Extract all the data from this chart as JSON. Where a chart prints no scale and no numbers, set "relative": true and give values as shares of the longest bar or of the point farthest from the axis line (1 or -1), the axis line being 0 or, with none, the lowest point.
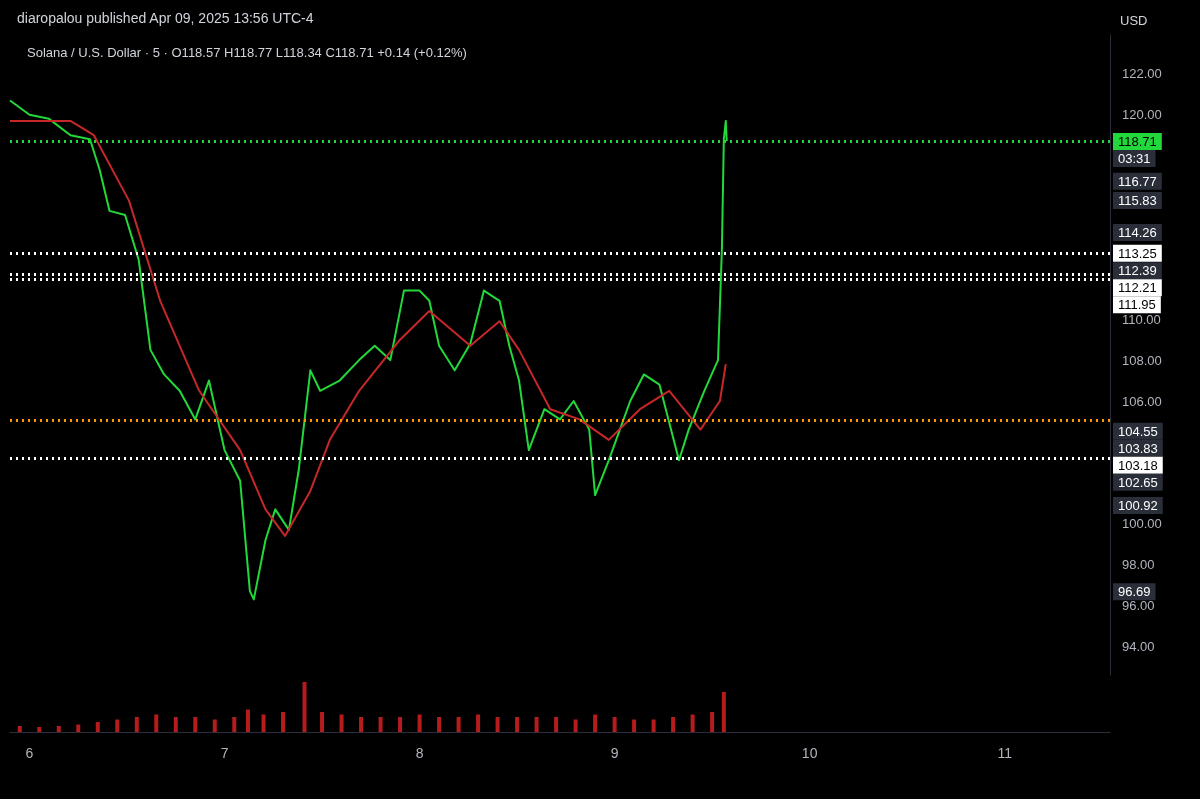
{
  "chart_data": [
    {
      "type": "line",
      "title": "Solana / U.S. Dollar · 5 · O118.57 H118.77 L118.34 C118.71 +0.14 (+0.12%)",
      "subtitle": "diaropalou published Apr 09, 2025 13:56 UTC-4",
      "ylabel": "USD",
      "xlim": [
        5.9,
        11.54
      ],
      "ylim": [
        92.6,
        123.9
      ],
      "yticks": [
        {
          "value": 94,
          "label": "94.00"
        },
        {
          "value": 96,
          "label": "96.00"
        },
        {
          "value": 98,
          "label": "98.00"
        },
        {
          "value": 100,
          "label": "100.00"
        },
        {
          "value": 106,
          "label": "106.00"
        },
        {
          "value": 108,
          "label": "108.00"
        },
        {
          "value": 110,
          "label": "110.00"
        },
        {
          "value": 120,
          "label": "120.00"
        },
        {
          "value": 122,
          "label": "122.00"
        }
      ],
      "tick_labels": "y",
      "series": [
        {
          "color": "#22d83a",
          "x": [
            5.9,
            6.0,
            6.1,
            6.21,
            6.31,
            6.36,
            6.41,
            6.49,
            6.56,
            6.62,
            6.69,
            6.77,
            6.85,
            6.92,
            7.0,
            7.08,
            7.13,
            7.15,
            7.21,
            7.26,
            7.33,
            7.38,
            7.44,
            7.49,
            7.59,
            7.69,
            7.77,
            7.85,
            7.92,
            8.0,
            8.05,
            8.1,
            8.18,
            8.26,
            8.33,
            8.41,
            8.46,
            8.51,
            8.56,
            8.64,
            8.72,
            8.79,
            8.87,
            8.9,
            8.97,
            9.08,
            9.15,
            9.23,
            9.33,
            9.38,
            9.46,
            9.53,
            9.55,
            9.56,
            9.57,
            9.575
          ],
          "values": [
            120.7,
            120.0,
            119.8,
            119.0,
            118.8,
            117.3,
            115.3,
            115.1,
            112.9,
            108.5,
            107.3,
            106.5,
            105.1,
            107.0,
            103.6,
            102.1,
            96.7,
            96.3,
            99.2,
            100.7,
            99.7,
            102.6,
            107.5,
            106.5,
            107.0,
            108.0,
            108.7,
            108.0,
            111.4,
            111.4,
            110.9,
            108.7,
            107.5,
            108.8,
            111.4,
            110.9,
            108.7,
            107.0,
            103.6,
            105.6,
            105.1,
            106.0,
            104.6,
            101.4,
            103.1,
            106.0,
            107.3,
            106.8,
            103.1,
            104.6,
            106.5,
            108.0,
            113.4,
            118.8,
            119.7,
            118.71
          ]
        },
        {
          "color": "#c62828",
          "x": [
            5.9,
            6.21,
            6.33,
            6.51,
            6.67,
            6.87,
            7.08,
            7.21,
            7.31,
            7.44,
            7.54,
            7.69,
            7.9,
            8.05,
            8.26,
            8.41,
            8.51,
            8.67,
            8.82,
            8.97,
            9.13,
            9.28,
            9.44,
            9.54,
            9.57
          ],
          "values": [
            119.7,
            119.7,
            119.0,
            115.8,
            110.9,
            106.5,
            103.6,
            100.7,
            99.4,
            101.6,
            104.1,
            106.5,
            109.0,
            110.4,
            108.7,
            109.9,
            108.5,
            105.6,
            105.1,
            104.1,
            105.6,
            106.5,
            104.6,
            106.0,
            107.8
          ]
        }
      ],
      "ref_lines": [
        {
          "axis": "y",
          "value": 118.71,
          "label": "118.71",
          "color": "#22d83a",
          "line_style": "dotted"
        },
        {
          "axis": "y",
          "value": 113.25,
          "label": "113.25",
          "color": "#ffffff",
          "line_style": "dotted"
        },
        {
          "axis": "y",
          "value": 112.21,
          "label": "112.21",
          "color": "#ffffff",
          "line_style": "dotted"
        },
        {
          "axis": "y",
          "value": 111.95,
          "label": "111.95",
          "color": "#ffffff",
          "line_style": "dotted"
        },
        {
          "axis": "y",
          "value": 105.05,
          "color": "#ff9800",
          "line_style": "dotted"
        },
        {
          "axis": "y",
          "value": 103.18,
          "label": "103.18",
          "color": "#ffffff",
          "line_style": "dotted"
        }
      ],
      "annotations": [
        "03:31",
        "116.77",
        "115.83",
        "114.26",
        "112.39",
        "104.55",
        "103.83",
        "102.65",
        "100.92",
        "96.69"
      ]
    },
    {
      "type": "bar",
      "relative": true,
      "color": "#b71c1c",
      "tick_labels": "x",
      "xlim": [
        5.9,
        11.54
      ],
      "xticks": [
        6,
        7,
        8,
        9,
        10,
        11
      ],
      "x": [
        5.95,
        6.05,
        6.15,
        6.25,
        6.35,
        6.45,
        6.55,
        6.65,
        6.75,
        6.85,
        6.95,
        7.05,
        7.12,
        7.2,
        7.3,
        7.41,
        7.5,
        7.6,
        7.7,
        7.8,
        7.9,
        8.0,
        8.1,
        8.2,
        8.3,
        8.4,
        8.5,
        8.6,
        8.7,
        8.8,
        8.9,
        9.0,
        9.1,
        9.2,
        9.3,
        9.4,
        9.5,
        9.56
      ],
      "values": [
        0.12,
        0.1,
        0.12,
        0.15,
        0.2,
        0.25,
        0.3,
        0.35,
        0.3,
        0.3,
        0.25,
        0.3,
        0.45,
        0.35,
        0.4,
        1.0,
        0.4,
        0.35,
        0.3,
        0.3,
        0.3,
        0.35,
        0.3,
        0.3,
        0.35,
        0.3,
        0.3,
        0.3,
        0.3,
        0.25,
        0.35,
        0.3,
        0.25,
        0.25,
        0.3,
        0.35,
        0.4,
        0.8
      ]
    }
  ]
}
